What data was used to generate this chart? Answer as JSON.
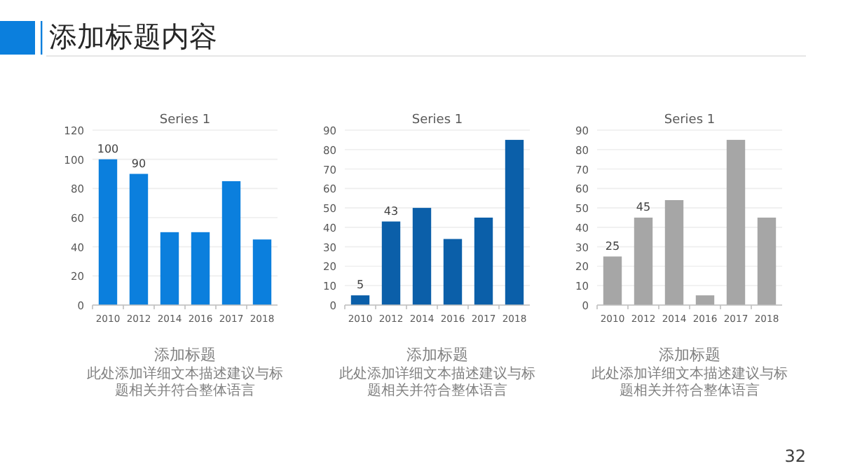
{
  "chart_data": [
    {
      "type": "bar",
      "title": "Series 1",
      "categories": [
        "2010",
        "2012",
        "2014",
        "2016",
        "2017",
        "2018"
      ],
      "values": [
        100,
        90,
        50,
        50,
        85,
        45
      ],
      "value_labels": [
        "100",
        "90",
        null,
        null,
        null,
        null
      ],
      "color": "#0b7fdd",
      "ylim": [
        0,
        120
      ],
      "yticks": [
        0,
        20,
        40,
        60,
        80,
        100,
        120
      ],
      "grid": "y",
      "annotations": [
        "添加标题",
        "此处添加详细文本描述建议与标题相关并符合整体语言",
        "添加标题内容"
      ]
    },
    {
      "type": "bar",
      "title": "Series 1",
      "categories": [
        "2010",
        "2012",
        "2014",
        "2016",
        "2017",
        "2018"
      ],
      "values": [
        5,
        43,
        50,
        34,
        45,
        85
      ],
      "value_labels": [
        "5",
        "43",
        null,
        null,
        null,
        null
      ],
      "color": "#0b5fa9",
      "ylim": [
        0,
        90
      ],
      "yticks": [
        0,
        10,
        20,
        30,
        40,
        50,
        60,
        70,
        80,
        90
      ],
      "grid": "y",
      "annotations": [
        "添加标题",
        "此处添加详细文本描述建议与标题相关并符合整体语言"
      ]
    },
    {
      "type": "bar",
      "title": "Series 1",
      "categories": [
        "2010",
        "2012",
        "2014",
        "2016",
        "2017",
        "2018"
      ],
      "values": [
        25,
        45,
        54,
        5,
        85,
        45
      ],
      "value_labels": [
        "25",
        "45",
        null,
        null,
        null,
        null
      ],
      "color": "#a6a6a6",
      "ylim": [
        0,
        90
      ],
      "yticks": [
        0,
        10,
        20,
        30,
        40,
        50,
        60,
        70,
        80,
        90
      ],
      "grid": "y",
      "annotations": [
        "添加标题",
        "此处添加详细文本描述建议与标题相关并符合整体语言",
        "32"
      ]
    }
  ]
}
